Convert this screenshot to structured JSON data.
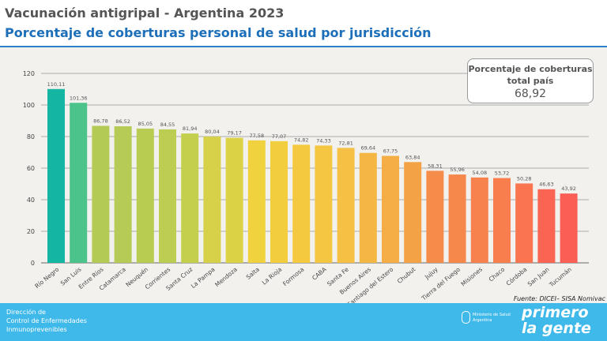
{
  "header": {
    "title": "Vacunación antigripal - Argentina 2023",
    "subtitle": "Porcentaje de coberturas personal de salud por jurisdicción"
  },
  "summary": {
    "label_line1": "Porcentaje de coberturas",
    "label_line2": "total país",
    "value": "68,92"
  },
  "source": "Fuente: DICEI– SISA Nomivac",
  "footer": {
    "org_line1": "Dirección de",
    "org_line2": "Control de Enfermedades",
    "org_line3": "Inmunoprevenibles",
    "ministry_line1": "Ministerio de Salud",
    "ministry_line2": "Argentina",
    "logo_line1": "primero",
    "logo_line2": "la gente"
  },
  "chart_data": {
    "type": "bar",
    "title": "",
    "xlabel": "",
    "ylabel": "",
    "ylim": [
      0,
      120
    ],
    "yticks": [
      0,
      20,
      40,
      60,
      80,
      100,
      120
    ],
    "grid": true,
    "categories": [
      "Río Negro",
      "San Luis",
      "Entre Ríos",
      "Catamarca",
      "Neuquén",
      "Corrientes",
      "Santa Cruz",
      "La Pampa",
      "Mendoza",
      "Salta",
      "La Rioja",
      "Formosa",
      "CABA",
      "Santa Fe",
      "Buenos Aires",
      "Santiago del Estero",
      "Chubut",
      "Jujuy",
      "Tierra del Fuego",
      "Misiones",
      "Chaco",
      "Córdoba",
      "San Juan",
      "Tucumán"
    ],
    "values": [
      110.11,
      101.36,
      86.78,
      86.52,
      85.05,
      84.55,
      81.94,
      80.04,
      79.17,
      77.58,
      77.07,
      74.82,
      74.33,
      72.81,
      69.64,
      67.75,
      63.84,
      58.31,
      55.96,
      54.08,
      53.72,
      50.28,
      46.63,
      43.92
    ],
    "labels": [
      "110,11",
      "101,36",
      "86,78",
      "86,52",
      "85,05",
      "84,55",
      "81,94",
      "80,04",
      "79,17",
      "77,58",
      "77,07",
      "74,82",
      "74,33",
      "72,81",
      "69,64",
      "67,75",
      "63,84",
      "58,31",
      "55,96",
      "54,08",
      "53,72",
      "50,28",
      "46,63",
      "43,92"
    ],
    "colors": [
      "#14b5a2",
      "#4cc38a",
      "#b3cb55",
      "#b5cb55",
      "#b9cc52",
      "#bccd51",
      "#c5cf4e",
      "#d6d148",
      "#dcd246",
      "#f0d23e",
      "#f2cd3e",
      "#f4c940",
      "#f5c642",
      "#f5c043",
      "#f5b744",
      "#f4ae45",
      "#f4a246",
      "#f68c4a",
      "#f7884b",
      "#f8824d",
      "#f87e4e",
      "#f9744f",
      "#f96552",
      "#fa5e55"
    ]
  }
}
